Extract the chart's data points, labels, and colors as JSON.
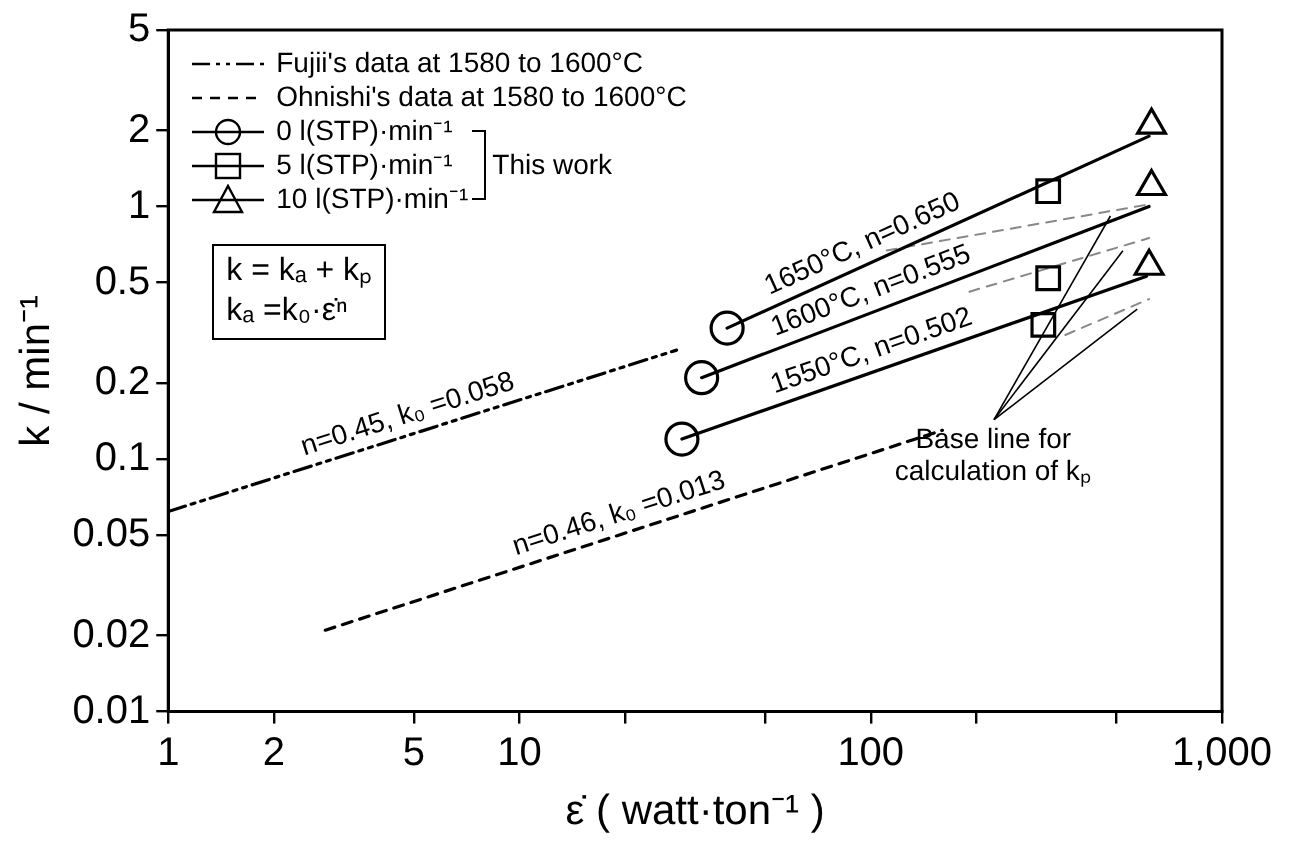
{
  "chart_data": {
    "type": "line",
    "xlabel": "ε̇ ( watt·ton⁻¹ )",
    "ylabel": "k / min⁻¹",
    "log": "xy",
    "xlim": [
      1,
      1000
    ],
    "ylim": [
      0.01,
      5
    ],
    "xticks": [
      1,
      2,
      5,
      10,
      {
        "value": 20,
        "label": null
      },
      {
        "value": 50,
        "label": null
      },
      100,
      {
        "value": 200,
        "label": null
      },
      {
        "value": 500,
        "label": null
      },
      {
        "value": 1000,
        "label": "1,000"
      }
    ],
    "yticks": [
      0.01,
      0.02,
      0.05,
      0.1,
      0.2,
      0.5,
      1,
      2,
      5
    ],
    "legend": "top left",
    "series": [
      {
        "name": "Fujii's data at 1580 to 1600°C",
        "color": "#000000",
        "line_style": "dashdot",
        "marker": "none",
        "x": [
          1,
          28
        ],
        "values": [
          0.062,
          0.27
        ]
      },
      {
        "name": "Ohnishi's data at 1580 to 1600°C",
        "color": "#000000",
        "line_style": "dashed",
        "marker": "none",
        "x": [
          2.8,
          160
        ],
        "values": [
          0.021,
          0.13
        ]
      },
      {
        "name": "0 l(STP)·min⁻¹",
        "type": "scatter",
        "color": "#000000",
        "marker": "circle",
        "x": [
          39,
          33,
          29
        ],
        "values": [
          0.33,
          0.21,
          0.12
        ]
      },
      {
        "name": "5 l(STP)·min⁻¹",
        "type": "scatter",
        "color": "#000000",
        "marker": "square",
        "x": [
          320,
          320,
          310
        ],
        "values": [
          1.15,
          0.52,
          0.34
        ]
      },
      {
        "name": "10 l(STP)·min⁻¹",
        "type": "scatter",
        "color": "#000000",
        "marker": "triangle",
        "x": [
          630,
          630,
          620
        ],
        "values": [
          2.1,
          1.2,
          0.58
        ]
      },
      {
        "color": "#000000",
        "line_style": "solid",
        "marker": "none",
        "x": [
          39,
          620
        ],
        "values": [
          0.33,
          1.9
        ]
      },
      {
        "color": "#000000",
        "line_style": "solid",
        "marker": "none",
        "x": [
          33,
          620
        ],
        "values": [
          0.21,
          1.0
        ]
      },
      {
        "color": "#000000",
        "line_style": "solid",
        "marker": "none",
        "x": [
          29,
          610
        ],
        "values": [
          0.12,
          0.53
        ]
      },
      {
        "color": "#888888",
        "line_style": "dashed",
        "marker": "none",
        "x": [
          111,
          620
        ],
        "values": [
          0.67,
          1.02
        ]
      },
      {
        "color": "#888888",
        "line_style": "dashed",
        "marker": "none",
        "x": [
          191,
          620
        ],
        "values": [
          0.46,
          0.75
        ]
      },
      {
        "color": "#888888",
        "line_style": "dashed",
        "marker": "none",
        "x": [
          358,
          620
        ],
        "values": [
          0.31,
          0.43
        ]
      }
    ],
    "annotations": [
      "This work",
      "k = kₐ + kₚ",
      "kₐ =k₀·ε̇ⁿ",
      {
        "text": "Base line for calculation of kₚ",
        "x": 500,
        "y": 0.685
      },
      {
        "text": "1650°C, n=0.650",
        "x": 100,
        "y": 0.6
      },
      {
        "text": "1600°C, n=0.555",
        "x": 105,
        "y": 0.39
      },
      {
        "text": "1550°C, n=0.502",
        "x": 105,
        "y": 0.225
      },
      {
        "text": "n=0.45, k₀ =0.058",
        "x": 5,
        "y": 0.126
      },
      {
        "text": "n=0.46, k₀ =0.013",
        "x": 20,
        "y": 0.051
      }
    ]
  }
}
